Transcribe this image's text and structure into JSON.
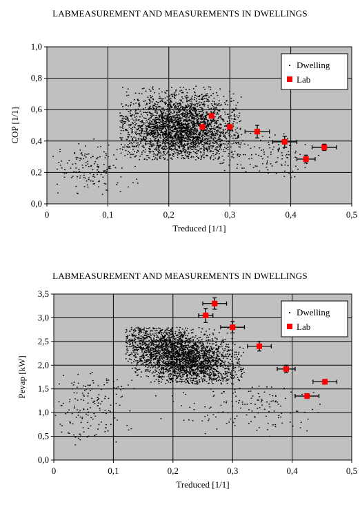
{
  "chart_data": [
    {
      "type": "scatter",
      "title": "LABMEASUREMENT AND MEASUREMENTS IN DWELLINGS",
      "xlabel": "Treduced [1/1]",
      "ylabel": "COP [1/1]",
      "xlim": [
        0,
        0.5
      ],
      "ylim": [
        0,
        1.0
      ],
      "xticks": [
        "0",
        "0,1",
        "0,2",
        "0,3",
        "0,4",
        "0,5"
      ],
      "yticks": [
        "0,0",
        "0,2",
        "0,4",
        "0,6",
        "0,8",
        "1,0"
      ],
      "grid": true,
      "legend": "top-right",
      "plot_background": "#c0c0c0",
      "series": [
        {
          "name": "Dwelling",
          "color": "#000000",
          "marker": "dot",
          "clusters": [
            {
              "x_range": [
                0.12,
                0.32
              ],
              "y_range": [
                0.28,
                0.75
              ],
              "center": [
                0.22,
                0.48
              ],
              "count": 3000
            },
            {
              "x_range": [
                0.01,
                0.15
              ],
              "y_range": [
                0.05,
                0.45
              ],
              "center": [
                0.07,
                0.22
              ],
              "count": 160
            },
            {
              "x_range": [
                0.28,
                0.46
              ],
              "y_range": [
                0.1,
                0.45
              ],
              "center": [
                0.36,
                0.32
              ],
              "count": 140
            }
          ]
        },
        {
          "name": "Lab",
          "color": "#ff0000",
          "marker": "square",
          "points": [
            {
              "x": 0.255,
              "y": 0.49,
              "xerr": 0.0,
              "yerr": 0.0
            },
            {
              "x": 0.27,
              "y": 0.56,
              "xerr": 0.0,
              "yerr": 0.0
            },
            {
              "x": 0.3,
              "y": 0.49,
              "xerr": 0.0,
              "yerr": 0.0
            },
            {
              "x": 0.345,
              "y": 0.46,
              "xerr": 0.02,
              "yerr": 0.04
            },
            {
              "x": 0.39,
              "y": 0.395,
              "xerr": 0.02,
              "yerr": 0.035
            },
            {
              "x": 0.425,
              "y": 0.285,
              "xerr": 0.015,
              "yerr": 0.025
            },
            {
              "x": 0.455,
              "y": 0.36,
              "xerr": 0.02,
              "yerr": 0.02
            }
          ]
        }
      ]
    },
    {
      "type": "scatter",
      "title": "LABMEASUREMENT AND MEASUREMENTS IN DWELLINGS",
      "xlabel": "Treduced [1/1]",
      "ylabel": "Pevap [kW]",
      "xlim": [
        0,
        0.5
      ],
      "ylim": [
        0,
        3.5
      ],
      "xticks": [
        "0",
        "0,1",
        "0,2",
        "0,3",
        "0,4",
        "0,5"
      ],
      "yticks": [
        "0,0",
        "0,5",
        "1,0",
        "1,5",
        "2,0",
        "2,5",
        "3,0",
        "3,5"
      ],
      "grid": true,
      "legend": "top-right",
      "plot_background": "#c0c0c0",
      "series": [
        {
          "name": "Dwelling",
          "color": "#000000",
          "marker": "dot",
          "clusters": [
            {
              "x_range": [
                0.12,
                0.32
              ],
              "y_range": [
                1.6,
                2.8
              ],
              "center": [
                0.21,
                2.2
              ],
              "count": 3000
            },
            {
              "x_range": [
                0.0,
                0.14
              ],
              "y_range": [
                0.3,
                2.0
              ],
              "center": [
                0.06,
                1.1
              ],
              "count": 170
            },
            {
              "x_range": [
                0.16,
                0.45
              ],
              "y_range": [
                0.5,
                1.6
              ],
              "center": [
                0.33,
                1.1
              ],
              "count": 150
            }
          ]
        },
        {
          "name": "Lab",
          "color": "#ff0000",
          "marker": "square",
          "points": [
            {
              "x": 0.255,
              "y": 3.05,
              "xerr": 0.012,
              "yerr": 0.15
            },
            {
              "x": 0.27,
              "y": 3.3,
              "xerr": 0.02,
              "yerr": 0.12
            },
            {
              "x": 0.3,
              "y": 2.8,
              "xerr": 0.02,
              "yerr": 0.12
            },
            {
              "x": 0.345,
              "y": 2.4,
              "xerr": 0.02,
              "yerr": 0.1
            },
            {
              "x": 0.39,
              "y": 1.92,
              "xerr": 0.015,
              "yerr": 0.08
            },
            {
              "x": 0.425,
              "y": 1.35,
              "xerr": 0.02,
              "yerr": 0.05
            },
            {
              "x": 0.455,
              "y": 1.65,
              "xerr": 0.02,
              "yerr": 0.05
            }
          ]
        }
      ]
    }
  ]
}
